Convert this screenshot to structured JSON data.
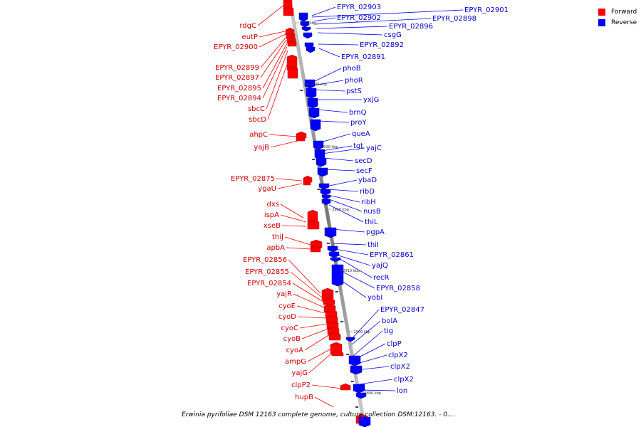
{
  "legend": {
    "forward_label": "Forward",
    "reverse_label": "Reverse",
    "forward_color": "#ff0000",
    "reverse_color": "#0000ff"
  },
  "caption": "Erwinia pyrifoliae DSM 12163 complete genome, culture collection DSM:12163. - 0....",
  "axis_ticks": [
    "2950 kbp",
    "2940 kbp",
    "2930 kbp",
    "2920 kbp",
    "2910 kbp",
    "2900 kbp",
    "2890 kbp"
  ],
  "forward_labels": [
    "rdgC",
    "eutP",
    "EPYR_02900",
    "EPYR_02899",
    "EPYR_02897",
    "EPYR_02895",
    "EPYR_02894",
    "sbcC",
    "sbcD",
    "ahpC",
    "yajB",
    "EPYR_02875",
    "ygaU",
    "dxs",
    "ispA",
    "xseB",
    "thiJ",
    "apbA",
    "EPYR_02856",
    "EPYR_02855",
    "EPYR_02854",
    "yajR",
    "cyoE",
    "cyoD",
    "cyoC",
    "cyoB",
    "cyoA",
    "ampG",
    "yajG",
    "clpP2",
    "hupB"
  ],
  "reverse_labels": [
    "EPYR_02903",
    "EPYR_02901",
    "EPYR_02902",
    "EPYR_02898",
    "EPYR_02896",
    "csgG",
    "EPYR_02892",
    "EPYR_02891",
    "phoB",
    "phoR",
    "pstS",
    "yxjG",
    "brnQ",
    "proY",
    "queA",
    "tgt",
    "yajC",
    "secD",
    "secF",
    "ybaD",
    "ribD",
    "ribH",
    "nusB",
    "thiL",
    "pgpA",
    "thiI",
    "EPYR_02861",
    "yajQ",
    "recR",
    "EPYR_02858",
    "yobI",
    "EPYR_02847",
    "bolA",
    "tig",
    "clpP",
    "clpX2",
    "clpX2",
    "clpX2",
    "lon"
  ]
}
